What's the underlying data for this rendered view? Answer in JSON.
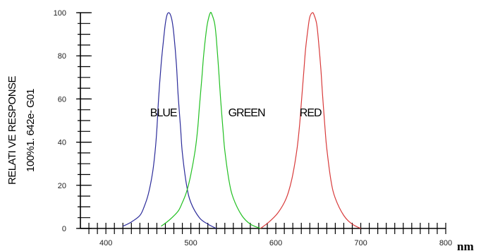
{
  "chart_data": {
    "type": "line",
    "title": "",
    "ylabel": "RELATI VE RESPONSE",
    "ylabel_sub": "100%⁡1. 642e- G01",
    "xunit": "nm",
    "xlim": [
      370,
      800
    ],
    "ylim": [
      0,
      100
    ],
    "x_ticks": [
      400,
      500,
      600,
      700,
      800
    ],
    "y_ticks": [
      0,
      20,
      40,
      60,
      80,
      100
    ],
    "grid": false,
    "series": [
      {
        "name": "BLUE",
        "color": "#2b2b9a",
        "label_at": [
          452,
          52
        ],
        "x": [
          420,
          430,
          440,
          445,
          450,
          455,
          458,
          460,
          462,
          465,
          468,
          470,
          472,
          474,
          476,
          478,
          480,
          483,
          485,
          488,
          490,
          495,
          500,
          510,
          520,
          530
        ],
        "y": [
          1,
          3,
          6,
          10,
          16,
          26,
          36,
          46,
          60,
          76,
          88,
          95,
          99,
          100,
          99,
          96,
          90,
          76,
          62,
          46,
          35,
          20,
          12,
          5,
          2,
          0
        ]
      },
      {
        "name": "GREEN",
        "color": "#22c022",
        "label_at": [
          544,
          52
        ],
        "x": [
          465,
          475,
          485,
          490,
          495,
          500,
          505,
          508,
          510,
          513,
          515,
          518,
          520,
          523,
          525,
          528,
          530,
          533,
          535,
          538,
          540,
          545,
          550,
          560,
          570,
          582
        ],
        "y": [
          1,
          4,
          8,
          12,
          17,
          25,
          36,
          46,
          56,
          70,
          80,
          91,
          96,
          100,
          99,
          95,
          88,
          72,
          60,
          45,
          36,
          22,
          14,
          6,
          2,
          0
        ]
      },
      {
        "name": "RED",
        "color": "#d83a3a",
        "label_at": [
          628,
          52
        ],
        "x": [
          582,
          592,
          602,
          610,
          615,
          620,
          625,
          628,
          630,
          633,
          635,
          638,
          640,
          643,
          645,
          648,
          650,
          653,
          655,
          658,
          660,
          665,
          670,
          680,
          690,
          700
        ],
        "y": [
          0,
          3,
          7,
          12,
          17,
          25,
          37,
          48,
          58,
          73,
          83,
          93,
          98,
          100,
          99,
          95,
          88,
          74,
          62,
          46,
          37,
          22,
          14,
          6,
          2,
          0
        ]
      }
    ]
  }
}
